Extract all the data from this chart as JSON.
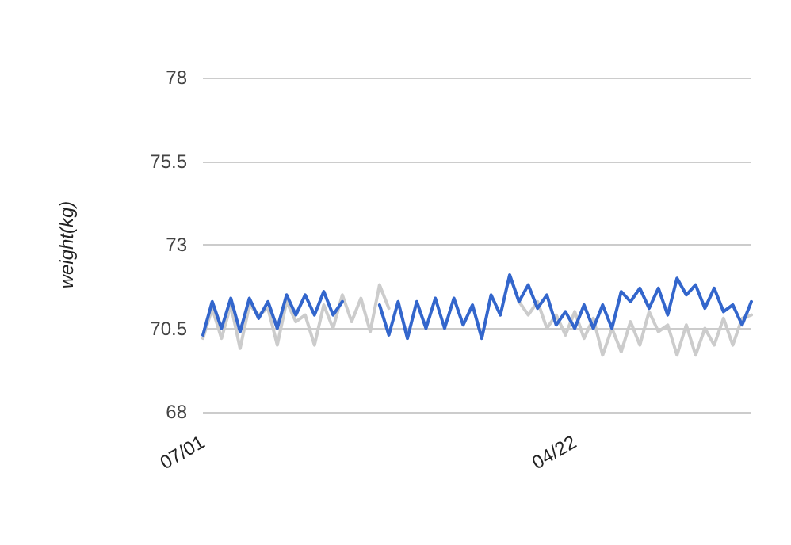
{
  "chart_data": {
    "type": "line",
    "ylabel": "weight(kg)",
    "ylim": [
      68,
      78
    ],
    "yticks": [
      68,
      70.5,
      73,
      75.5,
      78
    ],
    "grid": "y",
    "marker": "none",
    "line_style": "solid",
    "categories": [
      "07/01",
      null,
      null,
      null,
      null,
      null,
      null,
      null,
      null,
      null,
      null,
      null,
      null,
      null,
      null,
      null,
      null,
      null,
      null,
      null,
      null,
      null,
      null,
      null,
      null,
      null,
      null,
      null,
      null,
      null,
      null,
      null,
      null,
      null,
      null,
      null,
      null,
      null,
      null,
      null,
      "04/22",
      null,
      null,
      null,
      null,
      null,
      null,
      null,
      null,
      null,
      null,
      null,
      null,
      null,
      null,
      null,
      null,
      null,
      null,
      null
    ],
    "series": [
      {
        "color": "#cccccc",
        "values": [
          70.2,
          71.1,
          70.2,
          71.2,
          69.9,
          71.2,
          70.9,
          71.1,
          70,
          71.3,
          70.7,
          70.9,
          70,
          71.2,
          70.5,
          71.5,
          70.7,
          71.4,
          70.4,
          71.8,
          71.1,
          null,
          null,
          null,
          null,
          null,
          null,
          null,
          null,
          null,
          null,
          null,
          null,
          null,
          71.3,
          70.9,
          71.3,
          70.5,
          70.9,
          70.3,
          71,
          70.2,
          70.8,
          69.7,
          70.5,
          69.8,
          70.7,
          70,
          71,
          70.4,
          70.6,
          69.7,
          70.6,
          69.7,
          70.5,
          70,
          70.8,
          70,
          70.8,
          70.9
        ]
      },
      {
        "color": "#3366cc",
        "values": [
          70.3,
          71.3,
          70.5,
          71.4,
          70.4,
          71.4,
          70.8,
          71.3,
          70.5,
          71.5,
          70.9,
          71.5,
          70.9,
          71.6,
          70.9,
          71.3,
          null,
          null,
          null,
          71.2,
          70.3,
          71.3,
          70.2,
          71.3,
          70.5,
          71.4,
          70.5,
          71.4,
          70.6,
          71.2,
          70.2,
          71.5,
          70.9,
          72.1,
          71.3,
          71.8,
          71.1,
          71.5,
          70.6,
          71,
          70.5,
          71.2,
          70.5,
          71.2,
          70.5,
          71.6,
          71.3,
          71.7,
          71.1,
          71.7,
          70.9,
          72,
          71.5,
          71.8,
          71.1,
          71.7,
          71,
          71.2,
          70.6,
          71.3
        ]
      }
    ]
  }
}
